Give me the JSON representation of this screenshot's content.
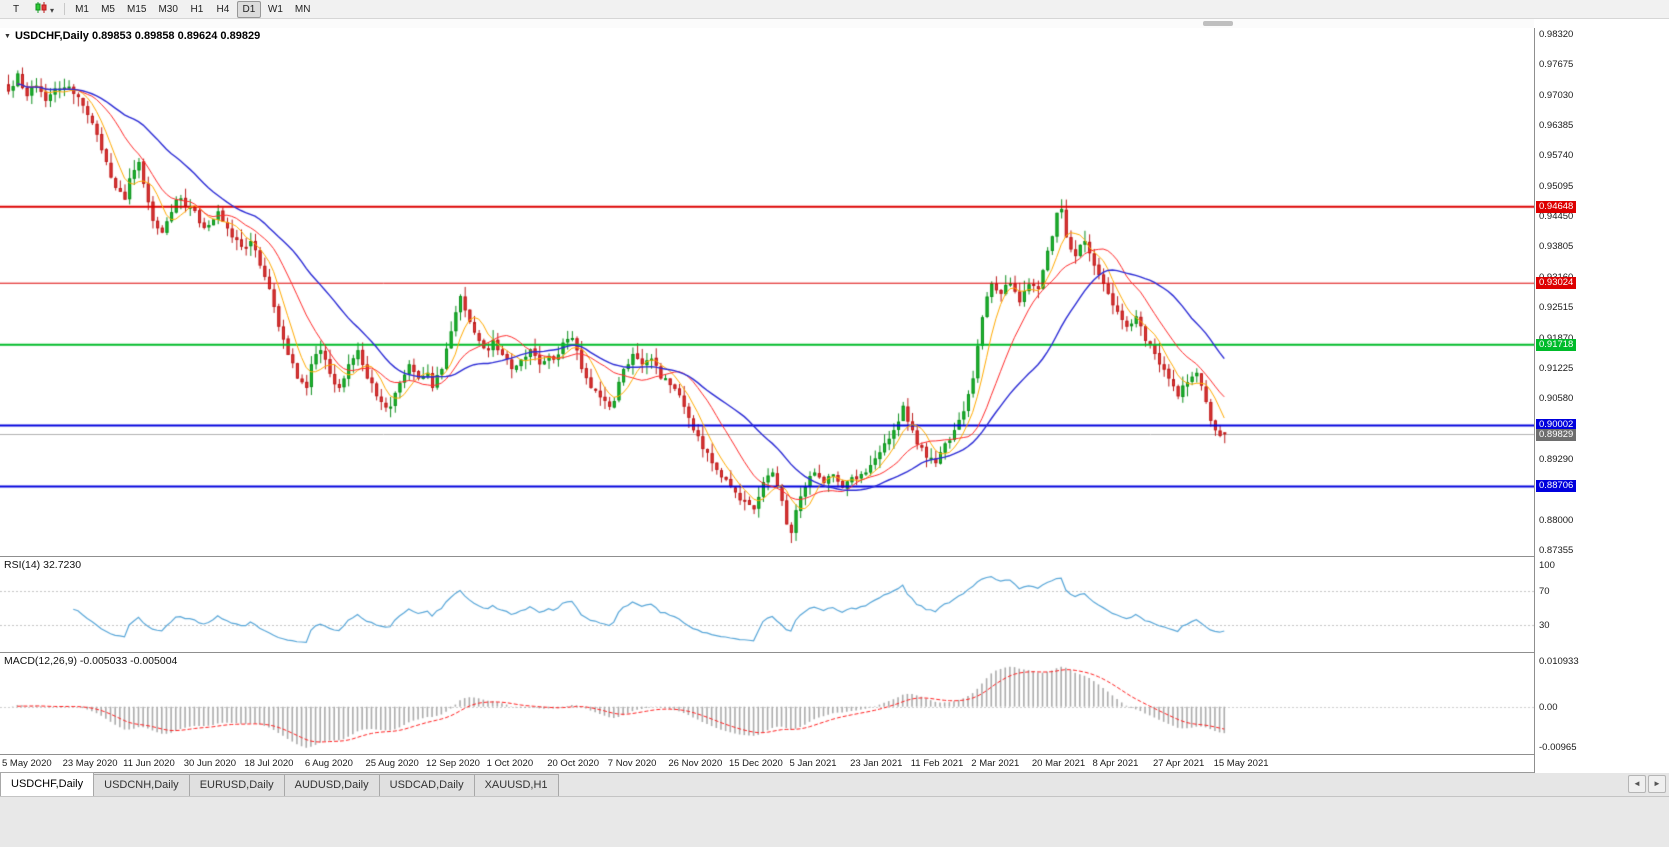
{
  "toolbar": {
    "tool_button": "T",
    "chart_type_caret": "▾",
    "timeframes": [
      "M1",
      "M5",
      "M15",
      "M30",
      "H1",
      "H4",
      "D1",
      "W1",
      "MN"
    ],
    "active_timeframe": "D1"
  },
  "chart": {
    "dropdown_glyph": "▼",
    "symbol_title": "USDCHF,Daily",
    "ohlc_text": "0.89853 0.89858 0.89624 0.89829"
  },
  "price_axis": {
    "max": 0.9832,
    "min": 0.87355,
    "labels": [
      "0.98320",
      "0.97675",
      "0.97030",
      "0.96385",
      "0.95740",
      "0.95095",
      "0.94450",
      "0.93805",
      "0.93160",
      "0.92515",
      "0.91870",
      "0.91225",
      "0.90580",
      "0.89935",
      "0.89290",
      "0.88645",
      "0.88000",
      "0.87355"
    ]
  },
  "levels": {
    "hlines": [
      {
        "price": 0.94648,
        "label": "0.94648",
        "color": "#dd0000",
        "width": 2
      },
      {
        "price": 0.93024,
        "label": "0.93024",
        "color": "#dd0000",
        "width": 1
      },
      {
        "price": 0.91718,
        "label": "0.91718",
        "color": "#00bb2a",
        "width": 2
      },
      {
        "price": 0.90002,
        "label": "0.90002",
        "color": "#0000dd",
        "width": 2
      },
      {
        "price": 0.88706,
        "label": "0.88706",
        "color": "#0000dd",
        "width": 2
      }
    ],
    "bid": {
      "price": 0.89829,
      "label": "0.89829",
      "color": "#6e6e6e",
      "line_color": "#b0b0b0"
    }
  },
  "rsi": {
    "name": "RSI(14)",
    "value": "32.7230",
    "period": 14,
    "axis_labels": [
      {
        "text": "100",
        "value": 100
      },
      {
        "text": "70",
        "value": 70
      },
      {
        "text": "30",
        "value": 30
      }
    ],
    "level_lines": [
      70,
      30
    ],
    "color": "#58a6d8"
  },
  "macd": {
    "name": "MACD(12,26,9)",
    "values": "-0.005033 -0.005004",
    "fast": 12,
    "slow": 26,
    "signal": 9,
    "axis_max": 0.010933,
    "axis_min": -0.00965,
    "axis_labels": [
      {
        "text": "0.010933",
        "value": 0.010933
      },
      {
        "text": "0.00",
        "value": 0
      },
      {
        "text": "-0.00965",
        "value": -0.00965
      }
    ],
    "histogram_color": "#ababab",
    "signal_color": "#ff2020"
  },
  "date_axis": {
    "labels": [
      "5 May 2020",
      "23 May 2020",
      "11 Jun 2020",
      "30 Jun 2020",
      "18 Jul 2020",
      "6 Aug 2020",
      "25 Aug 2020",
      "12 Sep 2020",
      "1 Oct 2020",
      "20 Oct 2020",
      "7 Nov 2020",
      "26 Nov 2020",
      "15 Dec 2020",
      "5 Jan 2021",
      "23 Jan 2021",
      "11 Feb 2021",
      "2 Mar 2021",
      "20 Mar 2021",
      "8 Apr 2021",
      "27 Apr 2021",
      "15 May 2021"
    ],
    "bars_per_label": 13
  },
  "tabs": {
    "items": [
      "USDCHF,Daily",
      "USDCNH,Daily",
      "EURUSD,Daily",
      "AUDUSD,Daily",
      "USDCAD,Daily",
      "XAUUSD,H1"
    ],
    "active_index": 0,
    "scroll_left": "◄",
    "scroll_right": "►"
  },
  "chart_data": {
    "type": "candlestick",
    "symbol": "USDCHF",
    "timeframe": "Daily",
    "bars": 262,
    "x_range": [
      "5 May 2020",
      "15 May 2021"
    ],
    "y_range": [
      0.87355,
      0.9832
    ],
    "last_candle": {
      "open": 0.89853,
      "high": 0.89858,
      "low": 0.89624,
      "close": 0.89829
    },
    "spike_low": {
      "index": 168,
      "price": 0.8757
    },
    "spike_high": {
      "index": 226,
      "price": 0.9472
    },
    "up_color": "#22bd32",
    "up_stroke": "#0d8f1d",
    "down_color": "#e23b3b",
    "down_stroke": "#bc1d1d",
    "moving_averages": [
      {
        "period": 6,
        "color": "#ffaa00",
        "width": 1
      },
      {
        "period": 14,
        "color": "#ff2a2a",
        "width": 1
      },
      {
        "period": 28,
        "color": "#2b2bd5",
        "width": 1.4
      }
    ],
    "close_anchors": [
      [
        0,
        0.971
      ],
      [
        2,
        0.9748
      ],
      [
        4,
        0.97
      ],
      [
        6,
        0.9722
      ],
      [
        8,
        0.969
      ],
      [
        10,
        0.9716
      ],
      [
        13,
        0.972
      ],
      [
        15,
        0.9698
      ],
      [
        17,
        0.966
      ],
      [
        19,
        0.9618
      ],
      [
        21,
        0.956
      ],
      [
        23,
        0.9505
      ],
      [
        25,
        0.948
      ],
      [
        26,
        0.9525
      ],
      [
        28,
        0.956
      ],
      [
        31,
        0.9435
      ],
      [
        33,
        0.941
      ],
      [
        36,
        0.948
      ],
      [
        39,
        0.9465
      ],
      [
        42,
        0.942
      ],
      [
        45,
        0.9455
      ],
      [
        48,
        0.94
      ],
      [
        50,
        0.938
      ],
      [
        52,
        0.9392
      ],
      [
        54,
        0.934
      ],
      [
        56,
        0.929
      ],
      [
        58,
        0.921
      ],
      [
        60,
        0.915
      ],
      [
        62,
        0.91
      ],
      [
        64,
        0.908
      ],
      [
        65,
        0.913
      ],
      [
        67,
        0.916
      ],
      [
        69,
        0.911
      ],
      [
        71,
        0.908
      ],
      [
        73,
        0.913
      ],
      [
        75,
        0.916
      ],
      [
        77,
        0.91
      ],
      [
        78,
        0.909
      ],
      [
        80,
        0.905
      ],
      [
        82,
        0.904
      ],
      [
        84,
        0.909
      ],
      [
        86,
        0.913
      ],
      [
        88,
        0.91
      ],
      [
        90,
        0.9112
      ],
      [
        91,
        0.908
      ],
      [
        93,
        0.912
      ],
      [
        95,
        0.92
      ],
      [
        97,
        0.9275
      ],
      [
        99,
        0.922
      ],
      [
        101,
        0.918
      ],
      [
        103,
        0.916
      ],
      [
        104,
        0.9182
      ],
      [
        106,
        0.915
      ],
      [
        108,
        0.912
      ],
      [
        110,
        0.914
      ],
      [
        112,
        0.9162
      ],
      [
        114,
        0.913
      ],
      [
        116,
        0.9148
      ],
      [
        117,
        0.914
      ],
      [
        119,
        0.9176
      ],
      [
        121,
        0.9186
      ],
      [
        123,
        0.912
      ],
      [
        125,
        0.908
      ],
      [
        127,
        0.906
      ],
      [
        129,
        0.904
      ],
      [
        130,
        0.9052
      ],
      [
        132,
        0.912
      ],
      [
        134,
        0.9152
      ],
      [
        136,
        0.913
      ],
      [
        138,
        0.9142
      ],
      [
        140,
        0.91
      ],
      [
        142,
        0.9086
      ],
      [
        143,
        0.9078
      ],
      [
        145,
        0.904
      ],
      [
        147,
        0.899
      ],
      [
        149,
        0.895
      ],
      [
        151,
        0.892
      ],
      [
        153,
        0.889
      ],
      [
        155,
        0.887
      ],
      [
        156,
        0.8858
      ],
      [
        158,
        0.884
      ],
      [
        160,
        0.8822
      ],
      [
        162,
        0.888
      ],
      [
        164,
        0.89
      ],
      [
        166,
        0.884
      ],
      [
        167,
        0.879
      ],
      [
        168,
        0.8772
      ],
      [
        169,
        0.882
      ],
      [
        171,
        0.887
      ],
      [
        173,
        0.89
      ],
      [
        175,
        0.8878
      ],
      [
        177,
        0.8896
      ],
      [
        179,
        0.8868
      ],
      [
        181,
        0.889
      ],
      [
        182,
        0.8886
      ],
      [
        184,
        0.89
      ],
      [
        186,
        0.893
      ],
      [
        188,
        0.8962
      ],
      [
        190,
        0.899
      ],
      [
        192,
        0.9042
      ],
      [
        194,
        0.899
      ],
      [
        195,
        0.896
      ],
      [
        197,
        0.8932
      ],
      [
        199,
        0.892
      ],
      [
        201,
        0.8962
      ],
      [
        203,
        0.899
      ],
      [
        205,
        0.903
      ],
      [
        207,
        0.91
      ],
      [
        209,
        0.923
      ],
      [
        211,
        0.9302
      ],
      [
        213,
        0.928
      ],
      [
        215,
        0.9302
      ],
      [
        217,
        0.9262
      ],
      [
        219,
        0.93
      ],
      [
        221,
        0.929
      ],
      [
        222,
        0.933
      ],
      [
        224,
        0.9402
      ],
      [
        225,
        0.9452
      ],
      [
        226,
        0.946
      ],
      [
        227,
        0.94
      ],
      [
        229,
        0.936
      ],
      [
        231,
        0.9392
      ],
      [
        233,
        0.934
      ],
      [
        234,
        0.932
      ],
      [
        236,
        0.928
      ],
      [
        238,
        0.9242
      ],
      [
        240,
        0.921
      ],
      [
        242,
        0.9232
      ],
      [
        244,
        0.918
      ],
      [
        246,
        0.9152
      ],
      [
        247,
        0.913
      ],
      [
        249,
        0.91
      ],
      [
        251,
        0.9062
      ],
      [
        253,
        0.9092
      ],
      [
        255,
        0.9112
      ],
      [
        257,
        0.905
      ],
      [
        258,
        0.901
      ],
      [
        259,
        0.899
      ],
      [
        260,
        0.8978
      ],
      [
        261,
        0.89829
      ]
    ]
  }
}
